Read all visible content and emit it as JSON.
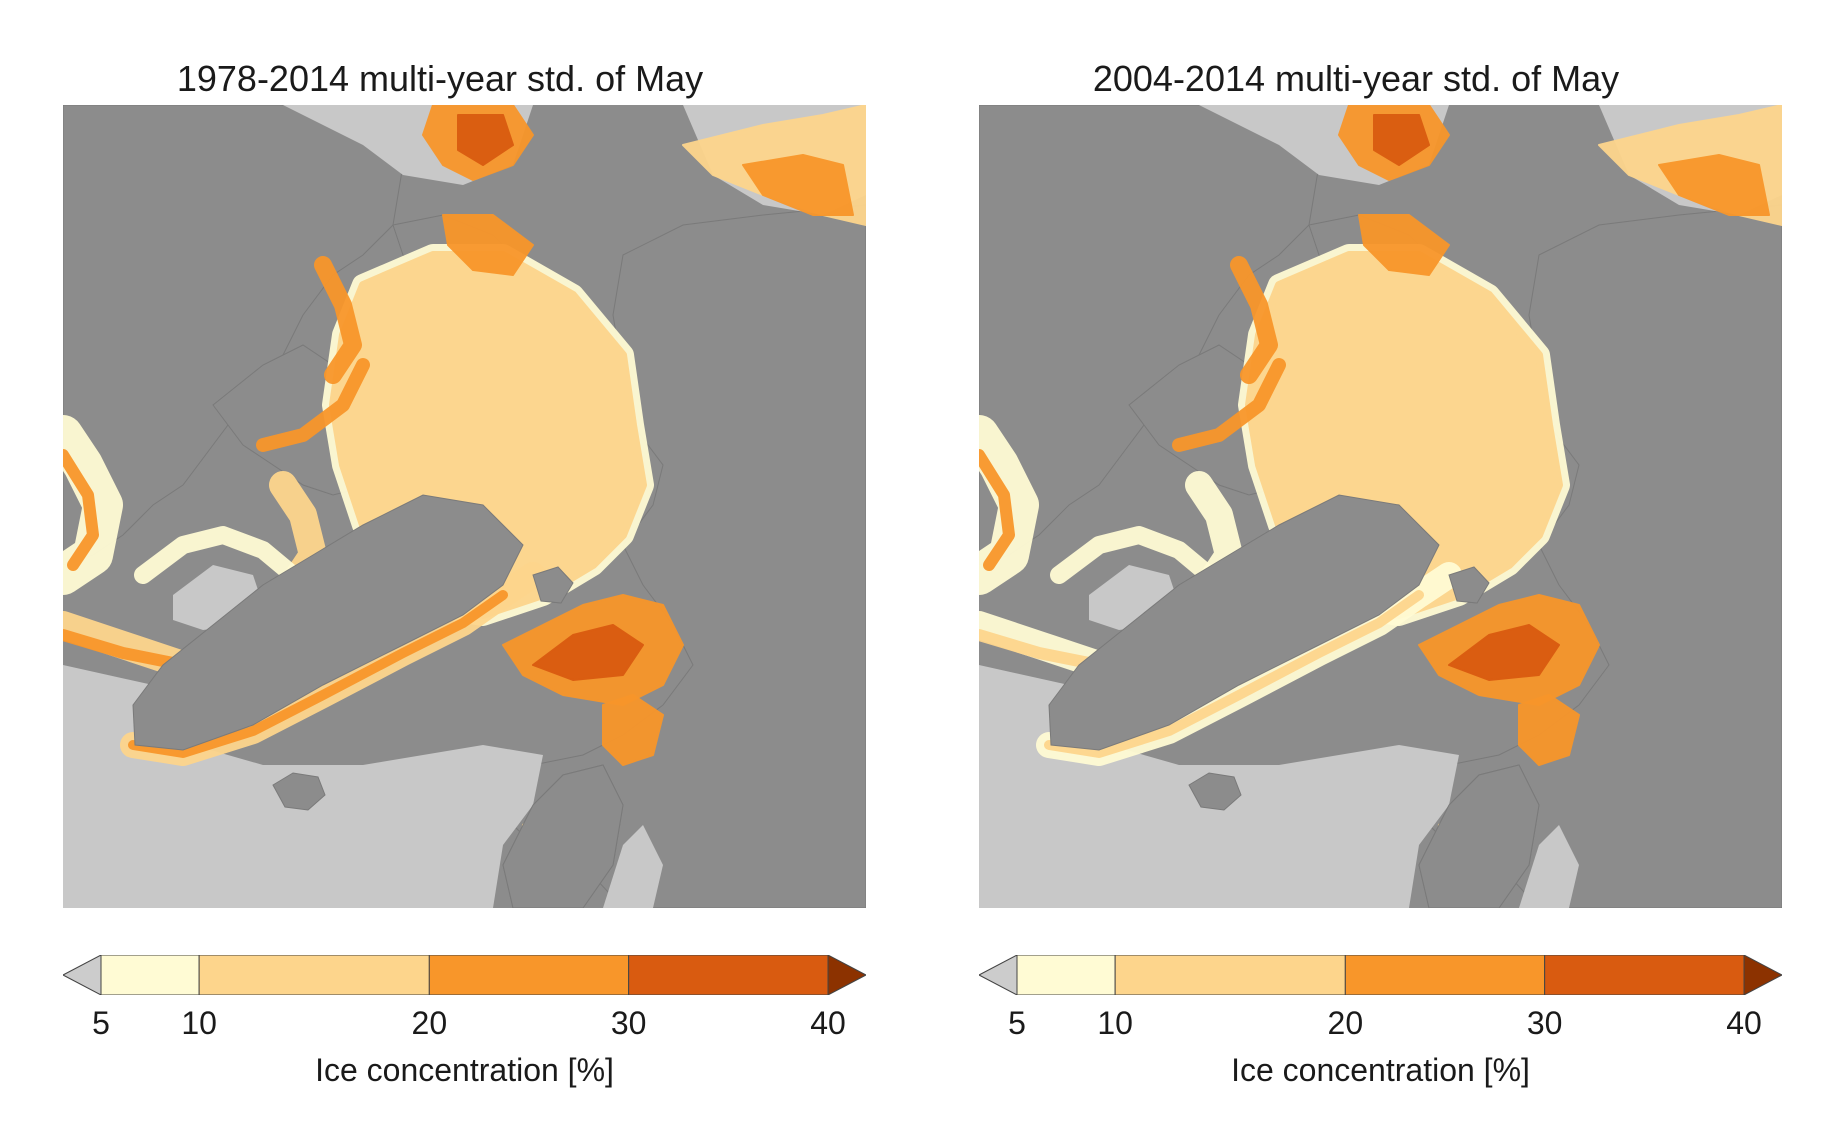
{
  "colors": {
    "land": "#8c8c8c",
    "ocean": "#c8c8c8",
    "coast": "#7a7a7a",
    "under": "#cccccc",
    "over": "#8c3200",
    "bins": [
      "#fffbd4",
      "#fdd58c",
      "#f8962a",
      "#d95b10"
    ]
  },
  "panels": [
    {
      "title": "1978-2014 multi-year std. of May",
      "variant": 0
    },
    {
      "title": "2004-2014 multi-year std. of May",
      "variant": 1
    }
  ],
  "colorbar": {
    "ticks": [
      "5",
      "10",
      "20",
      "30",
      "40"
    ],
    "label": "Ice concentration [%]"
  }
}
